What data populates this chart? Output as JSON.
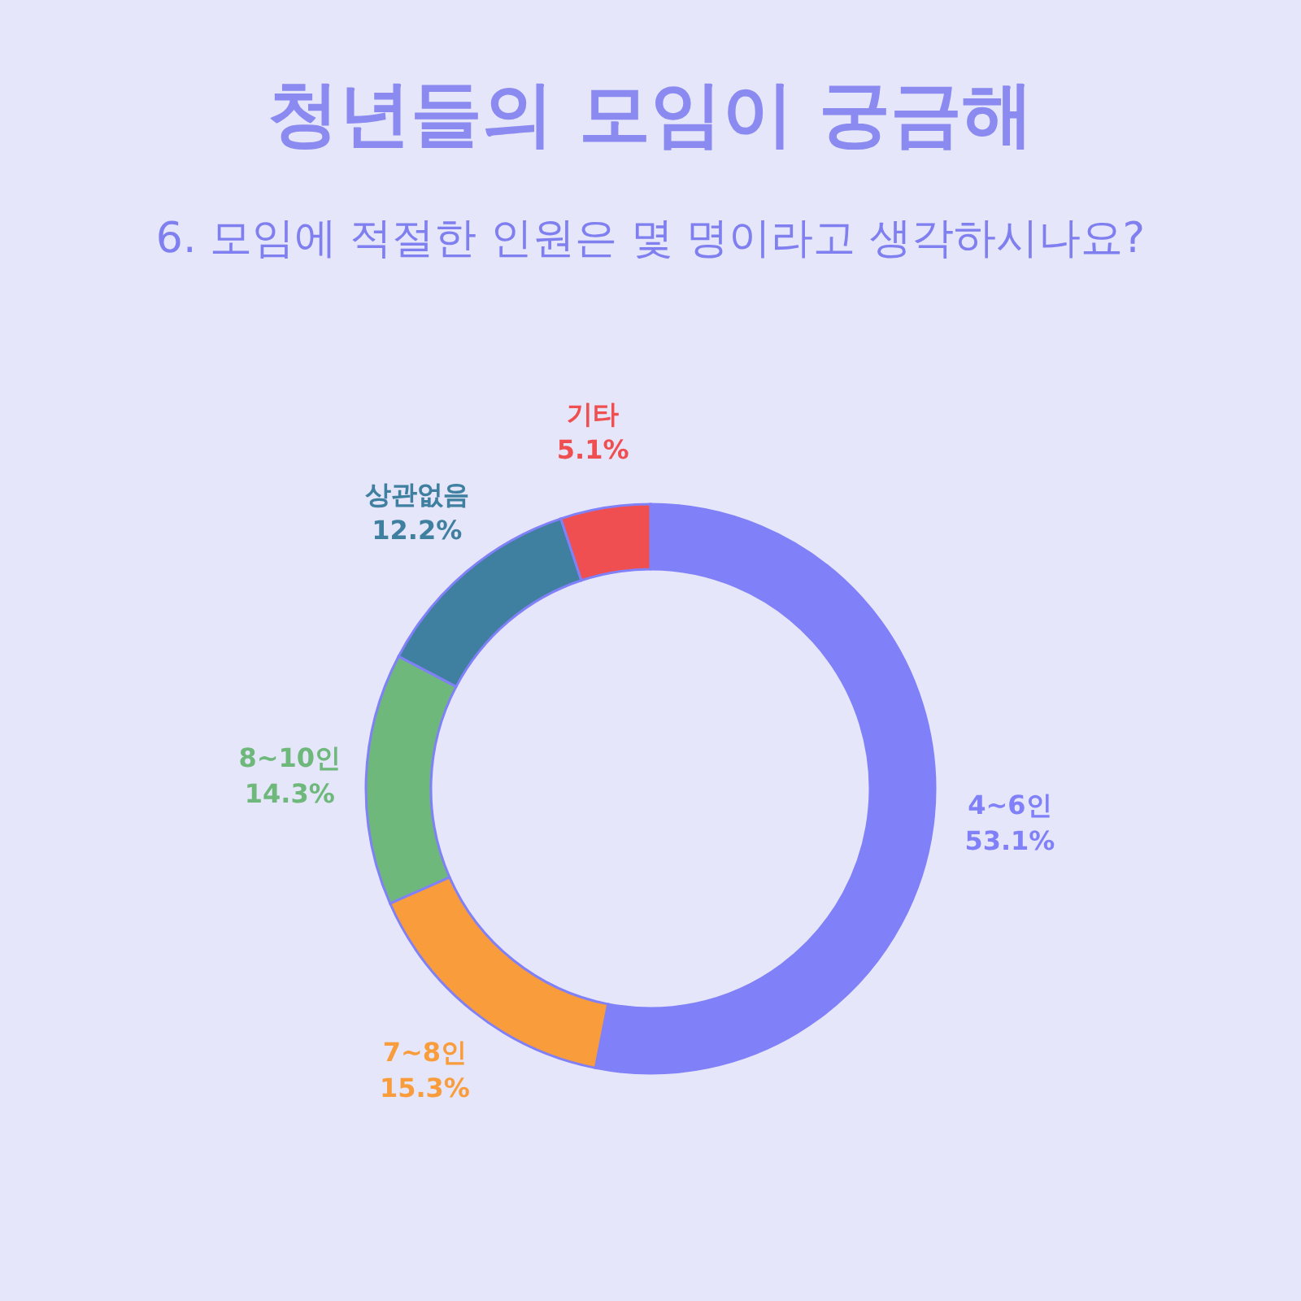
{
  "chart_data": {
    "type": "donut",
    "title": "청년들의 모임이 궁금해",
    "subtitle": "6. 모임에 적절한 인원은 몇 명이라고 생각하시나요?",
    "categories": [
      "4~6인",
      "7~8인",
      "8~10인",
      "상관없음",
      "기타"
    ],
    "values": [
      53.1,
      15.3,
      14.3,
      12.2,
      5.1
    ],
    "colors": [
      "#8080f8",
      "#f89c3c",
      "#6db87a",
      "#3f7f9f",
      "#ef4f50"
    ],
    "value_labels": [
      "53.1%",
      "15.3%",
      "14.3%",
      "12.2%",
      "5.1%"
    ],
    "legend": false
  }
}
